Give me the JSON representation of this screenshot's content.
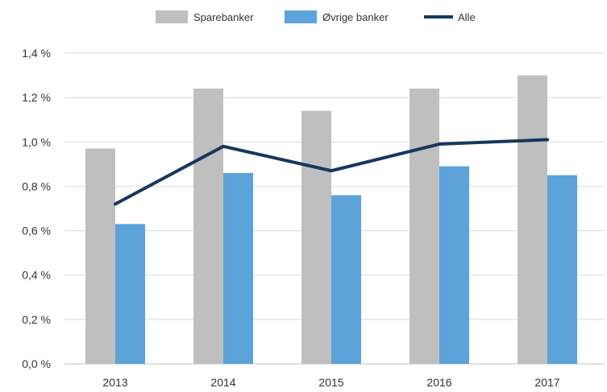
{
  "chart_data": {
    "type": "bar",
    "categories": [
      "2013",
      "2014",
      "2015",
      "2016",
      "2017"
    ],
    "series": [
      {
        "name": "Sparebanker",
        "kind": "bar",
        "color": "#bfbfbf",
        "values": [
          0.97,
          1.24,
          1.14,
          1.24,
          1.3
        ]
      },
      {
        "name": "Øvrige banker",
        "kind": "bar",
        "color": "#5ba3d9",
        "values": [
          0.63,
          0.86,
          0.76,
          0.89,
          0.85
        ]
      },
      {
        "name": "Alle",
        "kind": "line",
        "color": "#17375e",
        "values": [
          0.72,
          0.98,
          0.87,
          0.99,
          1.01
        ]
      }
    ],
    "ylim": [
      0,
      1.4
    ],
    "yticks": [
      "0,0 %",
      "0,2 %",
      "0,4 %",
      "0,6 %",
      "0,8 %",
      "1,0 %",
      "1,2 %",
      "1,4 %"
    ],
    "ytick_values": [
      0,
      0.2,
      0.4,
      0.6,
      0.8,
      1.0,
      1.2,
      1.4
    ],
    "grid": true,
    "legend_position": "top-center",
    "title": "",
    "xlabel": "",
    "ylabel": ""
  }
}
